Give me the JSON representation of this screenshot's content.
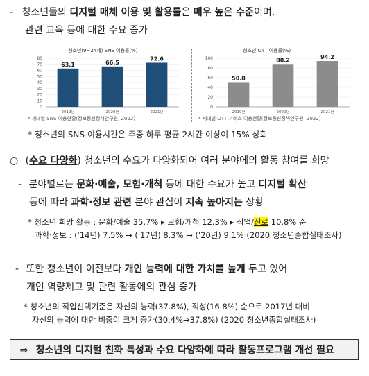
{
  "sec1": {
    "bullet": "-",
    "line1_a": "청소년들의 ",
    "line1_b": "디지털 매체 이용 및 활용률",
    "line1_c": "은 ",
    "line1_d": "매우 높은 수준",
    "line1_e": "이며,",
    "line2": "관련 교육 등에 대한 수요 증가"
  },
  "chart_data": [
    {
      "type": "bar",
      "title": "청소년(9~24세) SNS 이용률(%)",
      "categories": [
        "2019년",
        "2020년",
        "2021년"
      ],
      "values": [
        63.1,
        66.5,
        72.6
      ],
      "ylim": [
        0,
        80
      ],
      "yticks": [
        "0",
        "10",
        "20",
        "30",
        "40",
        "50",
        "60",
        "70",
        "80"
      ],
      "color": "#1f4e79",
      "source": "* 세대별 SNS 이용현황(정보통신정책연구원, 2022)"
    },
    {
      "type": "bar",
      "title": "청소년 OTT 이용률(%)",
      "categories": [
        "2019년",
        "2020년",
        "2021년"
      ],
      "values": [
        50.8,
        88.2,
        94.2
      ],
      "ylim": [
        0,
        100
      ],
      "yticks": [
        "0",
        "20",
        "40",
        "60",
        "80",
        "100"
      ],
      "color": "#8c8c8c",
      "source": "* 세대별 OTT 서비스 이용현황(정보통신정책연구원, 2022)"
    }
  ],
  "note1": "* 청소년의 SNS 이용시간은 주중 하루 평균 2시간 이상이 15% 상회",
  "sec2": {
    "bullet": "○",
    "paren_open": "(",
    "label": "수요 다양화",
    "paren_close": ")",
    "rest": " 청소년의 수요가 다양화되어 여러 분야에의 활동 참여를 희망"
  },
  "sec3": {
    "bullet": "-",
    "l1_a": "분야별로는 ",
    "l1_b": "문화·예술, 모험·개척",
    "l1_c": " 등에 대한 수요가 높고 ",
    "l1_d": "디지털 확산",
    "l2_a": "등에 따라 ",
    "l2_b": "과학·정보 관련",
    "l2_c": " 분야 관심이 ",
    "l2_d": "지속 높아지는",
    "l2_e": " 상황"
  },
  "note2": {
    "l1_a": "* 청소년 희망 활동 : 문화/예술 35.7% ▸ 모험/개척 12.3% ▸ 직업/",
    "l1_hl": "진로",
    "l1_b": " 10.8% 순",
    "l2": "과학·정보 : ('14년) 7.5% → ('17년) 8.3% → ('20년) 9.1% (2020 청소년종합실태조사)"
  },
  "sec4": {
    "bullet": "-",
    "l1_a": "또한 청소년이 이전보다 ",
    "l1_b": "개인 능력에 대한 가치를 높게",
    "l1_c": " 두고 있어",
    "l2": "개인 역량제고 및 관련 활동에의 관심 증가"
  },
  "note3": {
    "l1": "* 청소년의 직업선택기준은 자신의 능력(37.8%), 적성(16.8%) 순으로 2017년 대비",
    "l2": "자신의 능력에 대한 비중이 크게 증가(30.4%→37.8%) (2020 청소년종합실태조사)"
  },
  "summary": {
    "arrow": "⇨",
    "text": "청소년의 디지털 친화 특성과 수요 다양화에 따라 활동프로그램 개선 필요"
  }
}
